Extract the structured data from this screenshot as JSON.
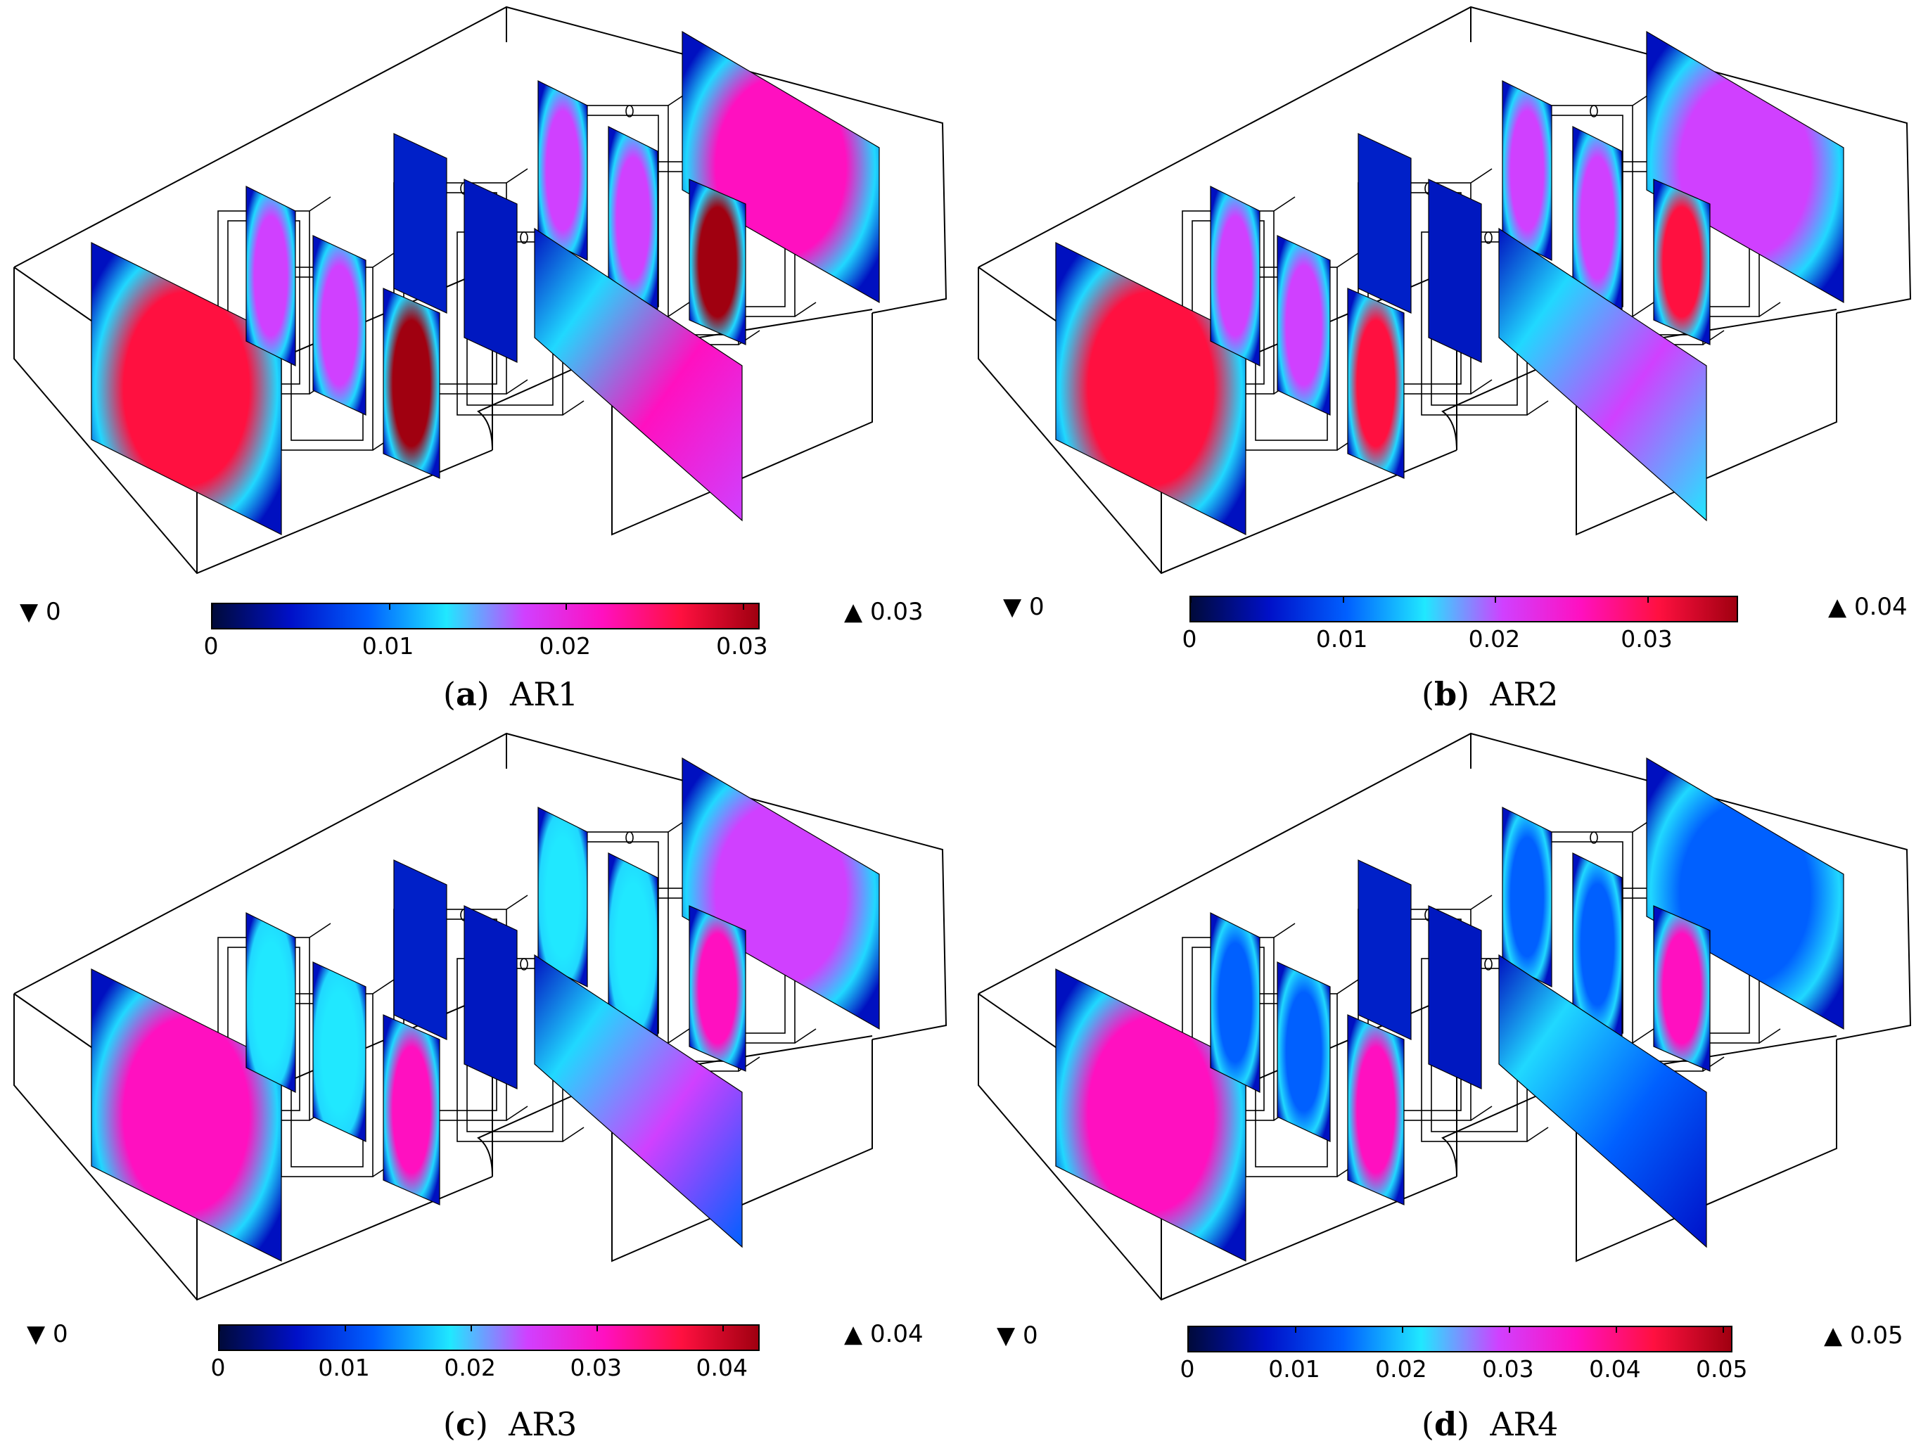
{
  "panels": [
    {
      "id": "a",
      "letter": "a",
      "name": "AR1",
      "min_label": "0",
      "max_label": "0.03",
      "ticks": [
        "0",
        "0.01",
        "0.02",
        "0.03"
      ],
      "tick_values": [
        0,
        0.01,
        0.02,
        0.03
      ],
      "range": [
        0,
        0.031
      ],
      "intensity": [
        0.85,
        0.55,
        0.95,
        0.7
      ]
    },
    {
      "id": "b",
      "letter": "b",
      "name": "AR2",
      "min_label": "0",
      "max_label": "0.04",
      "ticks": [
        "0",
        "0.01",
        "0.02",
        "0.03"
      ],
      "tick_values": [
        0,
        0.01,
        0.02,
        0.03
      ],
      "range": [
        0,
        0.036
      ],
      "intensity": [
        0.8,
        0.5,
        0.85,
        0.6
      ]
    },
    {
      "id": "c",
      "letter": "c",
      "name": "AR3",
      "min_label": "0",
      "max_label": "0.04",
      "ticks": [
        "0",
        "0.01",
        "0.02",
        "0.03",
        "0.04"
      ],
      "tick_values": [
        0,
        0.01,
        0.02,
        0.03,
        0.04
      ],
      "range": [
        0,
        0.043
      ],
      "intensity": [
        0.75,
        0.4,
        0.75,
        0.5
      ]
    },
    {
      "id": "d",
      "letter": "d",
      "name": "AR4",
      "min_label": "0",
      "max_label": "0.05",
      "ticks": [
        "0",
        "0.01",
        "0.02",
        "0.03",
        "0.04",
        "0.05"
      ],
      "tick_values": [
        0,
        0.01,
        0.02,
        0.03,
        0.04,
        0.05
      ],
      "range": [
        0,
        0.051
      ],
      "intensity": [
        0.72,
        0.35,
        0.7,
        0.35
      ]
    }
  ],
  "colormap": [
    "#000a3a",
    "#0010c8",
    "#0060ff",
    "#20e8ff",
    "#d040ff",
    "#ff10c0",
    "#ff1040",
    "#a00010"
  ],
  "markers": {
    "min_symbol": "▼",
    "max_symbol": "▲"
  }
}
